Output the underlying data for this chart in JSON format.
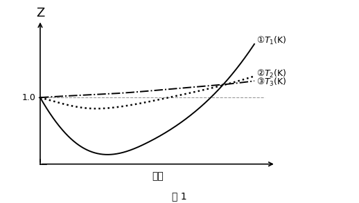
{
  "ylabel": "Z",
  "xlabel": "圧力",
  "caption": "図 1",
  "z_label": "1.0",
  "legend1": "①ｔ₁(K)",
  "legend2": "②ｔ₂(K)",
  "legend3": "③ｔ₃(K)",
  "background_color": "#ffffff",
  "curve1": {
    "x": [
      0.0,
      0.08,
      0.18,
      0.32,
      0.5,
      0.68,
      0.85,
      1.0
    ],
    "y": [
      1.0,
      0.78,
      0.6,
      0.52,
      0.62,
      0.82,
      1.1,
      1.45
    ]
  },
  "curve2": {
    "x": [
      0.0,
      0.1,
      0.22,
      0.4,
      0.6,
      0.8,
      1.0
    ],
    "y": [
      1.0,
      0.95,
      0.91,
      0.93,
      1.0,
      1.08,
      1.18
    ]
  },
  "curve3": {
    "x": [
      0.0,
      0.2,
      0.4,
      0.6,
      0.8,
      1.0
    ],
    "y": [
      1.0,
      1.02,
      1.04,
      1.07,
      1.1,
      1.14
    ]
  },
  "hline_y": 1.0,
  "xlim": [
    -0.02,
    1.12
  ],
  "ylim": [
    0.42,
    1.65
  ]
}
